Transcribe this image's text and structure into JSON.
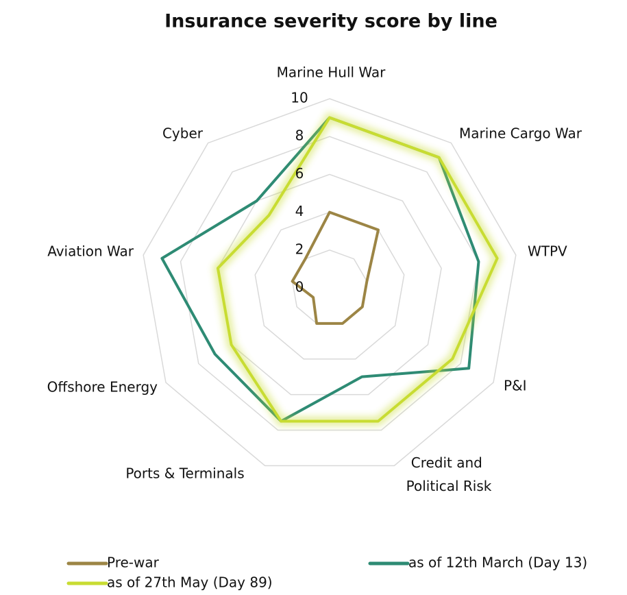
{
  "chart_data": {
    "type": "radar",
    "title": "Insurance severity score by line",
    "categories": [
      "Marine Hull War",
      "Marine Cargo War",
      "WTPV",
      "P&I",
      "Credit and Political Risk",
      "Ports & Terminals",
      "Offshore Energy",
      "Aviation War",
      "Cyber"
    ],
    "series": [
      {
        "name": "Pre-war",
        "color": "#9c8545",
        "values": [
          4,
          4,
          2,
          2,
          2,
          2,
          1,
          2,
          2
        ]
      },
      {
        "name": "as of 12th March (Day 13)",
        "color": "#2e8b74",
        "values": [
          9,
          9,
          8,
          8.5,
          5,
          7.5,
          7,
          9,
          6
        ]
      },
      {
        "name": "as of 27th May (Day 89)",
        "color": "#c8dc32",
        "values": [
          9,
          9,
          9,
          7.5,
          7.5,
          7.5,
          6,
          6,
          5
        ]
      }
    ],
    "ylim": [
      0,
      10
    ],
    "yticks": [
      0,
      2,
      4,
      6,
      8,
      10
    ],
    "grid": true
  }
}
